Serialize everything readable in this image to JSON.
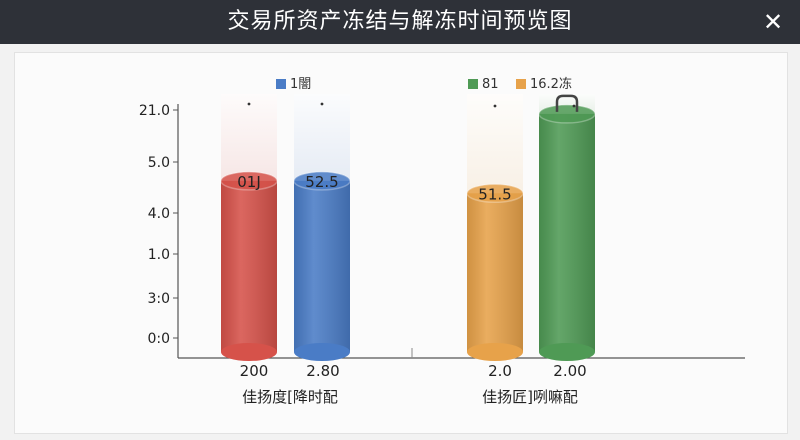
{
  "window": {
    "title": "交易所资产冻结与解冻时间预览图",
    "close_glyph": "✕"
  },
  "chart_data": {
    "type": "bar",
    "y_ticks": [
      "21.0",
      "5.0",
      "4.0",
      "1.0",
      "3:0",
      "0:0"
    ],
    "groups": [
      {
        "label": "佳扬度[降时配",
        "legend": [
          {
            "label": "1闇",
            "color": "#4a7cc6"
          }
        ]
      },
      {
        "label": "佳扬匠]咧嘛配",
        "legend": [
          {
            "label": "81",
            "color": "#4f9a55"
          },
          {
            "label": "16.2冻",
            "color": "#e7a24a"
          }
        ]
      }
    ],
    "bars": [
      {
        "group": 0,
        "color": "#d6524a",
        "fill": 0.69,
        "value_label": "01J",
        "x_label": "200"
      },
      {
        "group": 0,
        "color": "#4a7cc6",
        "fill": 0.69,
        "value_label": "52.5",
        "x_label": "2.80"
      },
      {
        "group": 1,
        "color": "#e7a24a",
        "fill": 0.64,
        "value_label": "51.5",
        "x_label": "2.0"
      },
      {
        "group": 1,
        "color": "#4f9a55",
        "fill": 0.96,
        "value_label": "",
        "x_label": "2.00",
        "handle": true
      }
    ]
  }
}
